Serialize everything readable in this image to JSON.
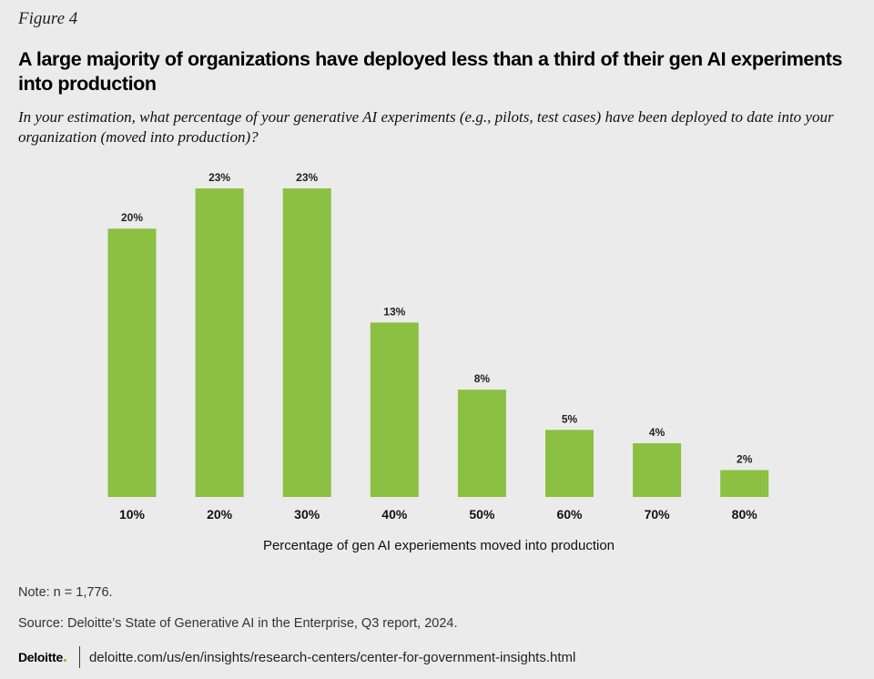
{
  "header": {
    "figure_label": "Figure 4",
    "title": "A large majority of organizations have deployed less than a third of their gen AI experiments into production",
    "subtitle": "In your estimation, what percentage of your generative AI experiments (e.g., pilots, test cases) have been deployed to date into your organization (moved into production)?"
  },
  "chart_data": {
    "type": "bar",
    "categories": [
      "10%",
      "20%",
      "30%",
      "40%",
      "50%",
      "60%",
      "70%",
      "80%"
    ],
    "values": [
      20,
      23,
      23,
      13,
      8,
      5,
      4,
      2
    ],
    "data_labels": [
      "20%",
      "23%",
      "23%",
      "13%",
      "8%",
      "5%",
      "4%",
      "2%"
    ],
    "xlabel": "Percentage of gen AI experiements moved into production",
    "ylabel": "",
    "ylim": [
      0,
      23
    ],
    "grid": false,
    "colors": {
      "bar": "#8bc043"
    }
  },
  "footer": {
    "note": "Note: n = 1,776.",
    "source": "Source: Deloitte’s State of Generative AI in the Enterprise, Q3 report, 2024.",
    "logo_text": "Deloitte",
    "url": "deloitte.com/us/en/insights/research-centers/center-for-government-insights.html"
  }
}
